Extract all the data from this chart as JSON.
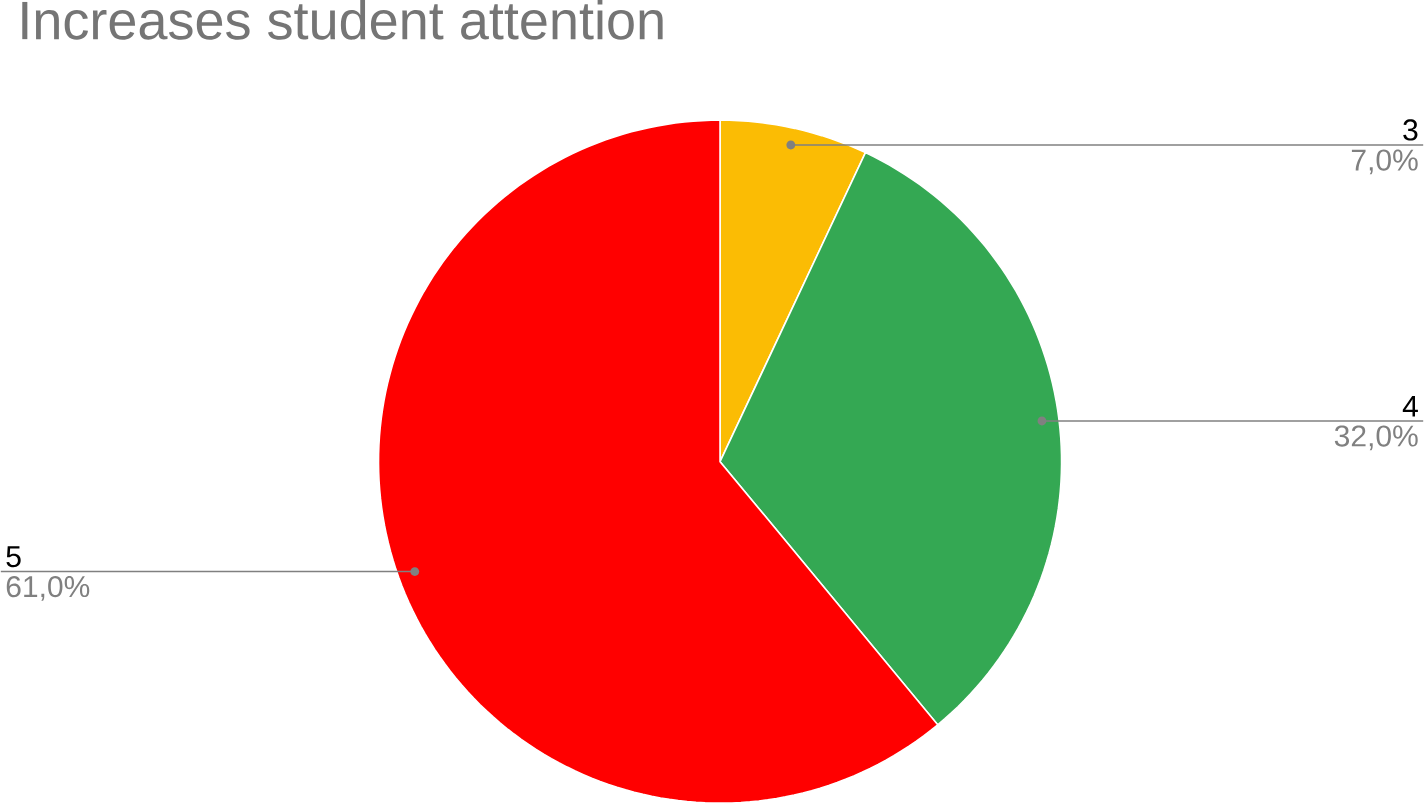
{
  "chart_data": {
    "type": "pie",
    "title": "Increases student attention",
    "categories": [
      "3",
      "4",
      "5"
    ],
    "values": [
      7,
      32,
      61
    ],
    "colors": [
      "#fbbc04",
      "#34a853",
      "#ff0000"
    ],
    "value_labels": [
      "7,0%",
      "32,0%",
      "61,0%"
    ]
  }
}
